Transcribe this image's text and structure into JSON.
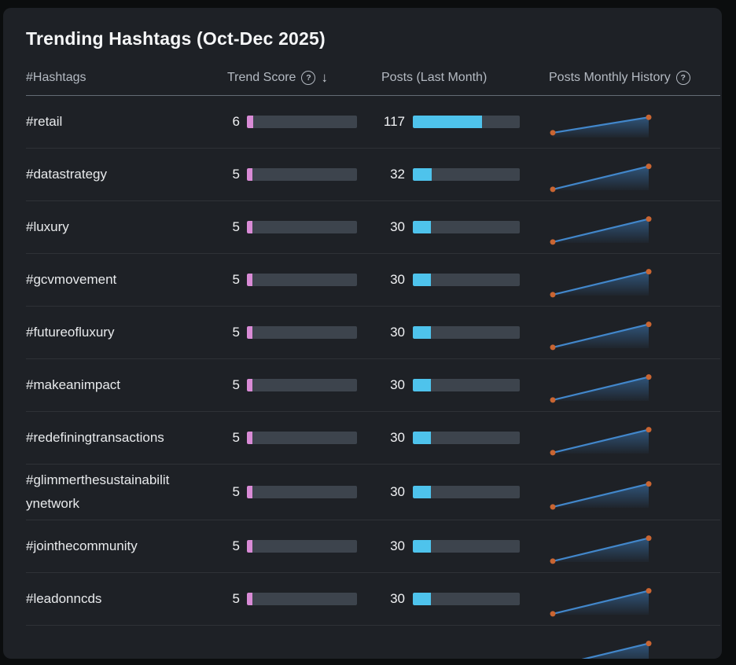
{
  "title": "Trending Hashtags (Oct-Dec 2025)",
  "columns": {
    "hashtags": "#Hashtags",
    "trend_score": "Trend Score",
    "posts": "Posts (Last Month)",
    "history": "Posts Monthly History"
  },
  "icons": {
    "help": "?",
    "sort_desc": "↓"
  },
  "colors": {
    "background": "#0B0D0E",
    "card": "#1E2126",
    "score_bar": "#D98BD6",
    "posts_bar": "#4EC3EC",
    "bar_track": "#3D444D",
    "spark_line": "#4287CB",
    "spark_dot": "#C96532",
    "spark_fill_top": "#3E7FBF"
  },
  "bars": {
    "score_max": 100,
    "posts_max": 180
  },
  "rows": [
    {
      "hashtag": "#retail",
      "score": 6,
      "posts": 117,
      "history": [
        0.16,
        0.68
      ]
    },
    {
      "hashtag": "#datastrategy",
      "score": 5,
      "posts": 32,
      "history": [
        0.03,
        0.8
      ]
    },
    {
      "hashtag": "#luxury",
      "score": 5,
      "posts": 30,
      "history": [
        0.03,
        0.8
      ]
    },
    {
      "hashtag": "#gcvmovement",
      "score": 5,
      "posts": 30,
      "history": [
        0.03,
        0.8
      ]
    },
    {
      "hashtag": "#futureofluxury",
      "score": 5,
      "posts": 30,
      "history": [
        0.03,
        0.8
      ]
    },
    {
      "hashtag": "#makeanimpact",
      "score": 5,
      "posts": 30,
      "history": [
        0.03,
        0.8
      ]
    },
    {
      "hashtag": "#redefiningtransactions",
      "score": 5,
      "posts": 30,
      "history": [
        0.03,
        0.8
      ]
    },
    {
      "hashtag": "#glimmerthesustainabilitynetwork",
      "score": 5,
      "posts": 30,
      "history": [
        0.03,
        0.8
      ]
    },
    {
      "hashtag": "#jointhecommunity",
      "score": 5,
      "posts": 30,
      "history": [
        0.03,
        0.8
      ]
    },
    {
      "hashtag": "#leadonncds",
      "score": 5,
      "posts": 30,
      "history": [
        0.03,
        0.8
      ]
    },
    {
      "hashtag": "",
      "score": null,
      "posts": null,
      "history": [
        0.03,
        0.8
      ]
    }
  ]
}
